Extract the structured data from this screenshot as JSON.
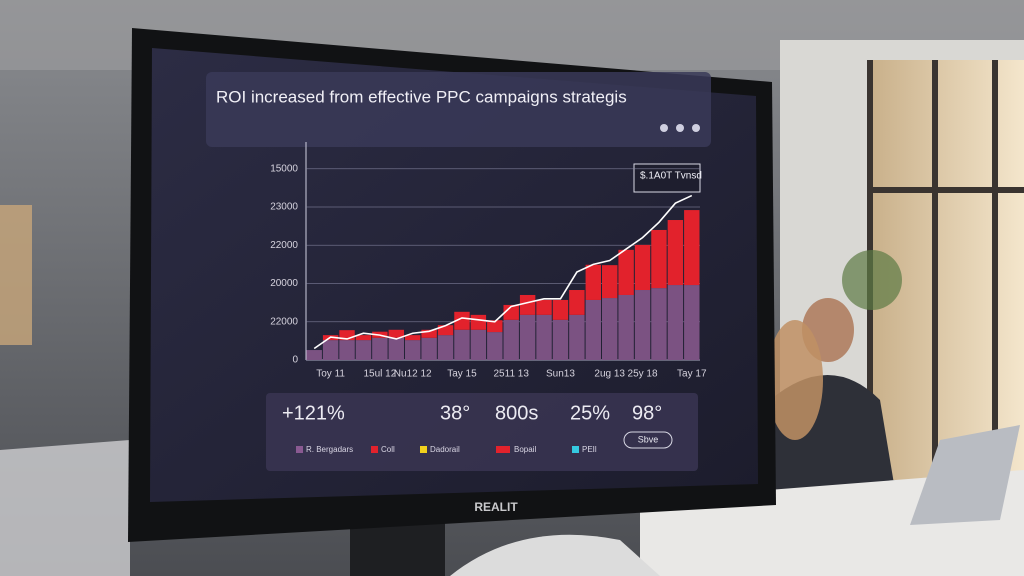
{
  "chart_data": {
    "type": "bar",
    "title": "ROI increased from effective PPC campaigns strategis",
    "annotation": "$.1A0T Tvnsd",
    "brand": "REALIT",
    "categories": [
      null,
      "Toy 11",
      null,
      null,
      "15ul 12",
      null,
      "Nu12 12",
      null,
      null,
      "Tay 15",
      null,
      null,
      "2511 13",
      null,
      null,
      "Sun13",
      null,
      null,
      "2ug 13",
      null,
      "25y 18",
      null,
      null,
      "Tay 17"
    ],
    "series": [
      {
        "color": "#7b5282",
        "values": [
          0.26,
          0.52,
          0.52,
          0.52,
          0.58,
          0.58,
          0.52,
          0.58,
          0.65,
          0.79,
          0.79,
          0.73,
          1.05,
          1.18,
          1.18,
          1.05,
          1.18,
          1.57,
          1.62,
          1.7,
          1.83,
          1.88,
          1.96,
          1.96
        ]
      },
      {
        "color": "#e2222c",
        "values": [
          0,
          0.13,
          0.26,
          0.13,
          0.16,
          0.21,
          0.13,
          0.21,
          0.26,
          0.47,
          0.39,
          0.31,
          0.39,
          0.52,
          0.39,
          0.52,
          0.65,
          0.92,
          0.86,
          1.18,
          1.18,
          1.52,
          1.7,
          1.96
        ]
      },
      {
        "color": "#ffffff",
        "type": "line",
        "values": [
          0.3,
          0.6,
          0.55,
          0.7,
          0.65,
          0.55,
          0.7,
          0.75,
          0.9,
          1.1,
          1.05,
          1.0,
          1.4,
          1.5,
          1.6,
          1.6,
          2.3,
          2.5,
          2.6,
          2.9,
          3.2,
          3.6,
          4.1,
          4.3
        ]
      }
    ],
    "ylim": [
      0,
      5.7
    ],
    "yticks": [
      {
        "value": 0,
        "label": "0"
      },
      {
        "value": 1,
        "label": "22000"
      },
      {
        "value": 2,
        "label": "20000"
      },
      {
        "value": 3,
        "label": "22000"
      },
      {
        "value": 4,
        "label": "23000"
      },
      {
        "value": 5,
        "label": "15000"
      }
    ],
    "grid": true,
    "stats": [
      "+121%",
      "38°",
      "800s",
      "25%",
      "98°"
    ],
    "legend": [
      {
        "name": "R. Bergadars",
        "color": "#8a5a92"
      },
      {
        "name": "Coll",
        "color": "#e2222c"
      },
      {
        "name": "Dadorail",
        "color": "#f1d11c"
      },
      {
        "name": "Bopail",
        "color": "#e2222c"
      },
      {
        "name": "PEIl",
        "color": "#35c9e0"
      }
    ],
    "button": "Sbve"
  }
}
